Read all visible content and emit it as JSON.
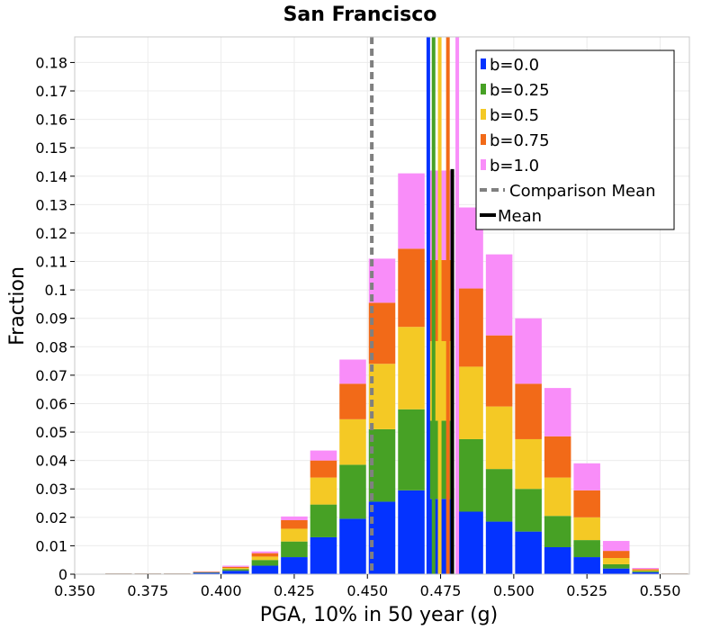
{
  "chart_data": {
    "type": "bar",
    "stacked": true,
    "title": "San Francisco",
    "xlabel": "PGA, 10% in 50 year (g)",
    "ylabel": "Fraction",
    "xlim": [
      0.35,
      0.56
    ],
    "ylim": [
      0,
      0.189
    ],
    "bin_width": 0.01,
    "x_ticks": [
      "0.350",
      "0.375",
      "0.400",
      "0.425",
      "0.450",
      "0.475",
      "0.500",
      "0.525",
      "0.550"
    ],
    "x_tick_values": [
      0.35,
      0.375,
      0.4,
      0.425,
      0.45,
      0.475,
      0.5,
      0.525,
      0.55
    ],
    "y_ticks": [
      "0",
      "0.01",
      "0.02",
      "0.03",
      "0.04",
      "0.05",
      "0.06",
      "0.07",
      "0.08",
      "0.09",
      "0.1",
      "0.11",
      "0.12",
      "0.13",
      "0.14",
      "0.15",
      "0.16",
      "0.17",
      "0.18"
    ],
    "y_tick_values": [
      0,
      0.01,
      0.02,
      0.03,
      0.04,
      0.05,
      0.06,
      0.07,
      0.08,
      0.09,
      0.1,
      0.11,
      0.12,
      0.13,
      0.14,
      0.15,
      0.16,
      0.17,
      0.18
    ],
    "bin_starts": [
      0.36,
      0.37,
      0.38,
      0.39,
      0.4,
      0.41,
      0.42,
      0.43,
      0.44,
      0.45,
      0.46,
      0.47,
      0.48,
      0.49,
      0.5,
      0.51,
      0.52,
      0.53,
      0.54,
      0.55
    ],
    "series": [
      {
        "name": "b=0.0",
        "color": "#0433ff",
        "values": [
          0.0,
          0.0,
          0.0,
          0.0005,
          0.0012,
          0.003,
          0.006,
          0.013,
          0.0195,
          0.0255,
          0.0295,
          0.0265,
          0.022,
          0.0185,
          0.015,
          0.0095,
          0.006,
          0.002,
          0.0007,
          0.0
        ]
      },
      {
        "name": "b=0.25",
        "color": "#47a125",
        "values": [
          0.0,
          0.0,
          0.0,
          0.0002,
          0.0006,
          0.002,
          0.0055,
          0.0115,
          0.019,
          0.0255,
          0.0285,
          0.0275,
          0.0255,
          0.0185,
          0.015,
          0.011,
          0.006,
          0.0015,
          0.0004,
          0.0
        ]
      },
      {
        "name": "b=0.5",
        "color": "#f4c925",
        "values": [
          0.0,
          0.0,
          0.0,
          0.0001,
          0.0004,
          0.0012,
          0.0045,
          0.0095,
          0.016,
          0.023,
          0.029,
          0.028,
          0.0255,
          0.022,
          0.0175,
          0.0135,
          0.008,
          0.0022,
          0.0003,
          0.0
        ]
      },
      {
        "name": "b=0.75",
        "color": "#f26a18",
        "values": [
          0.0,
          0.0,
          0.0,
          0.0001,
          0.0004,
          0.0012,
          0.003,
          0.006,
          0.0125,
          0.0215,
          0.0275,
          0.0285,
          0.0275,
          0.025,
          0.0195,
          0.0145,
          0.0095,
          0.0025,
          0.0004,
          0.0
        ]
      },
      {
        "name": "b=1.0",
        "color": "#f98df9",
        "values": [
          0.0,
          0.0,
          0.0,
          0.0001,
          0.0004,
          0.0006,
          0.0013,
          0.0035,
          0.0085,
          0.0155,
          0.0265,
          0.0315,
          0.0285,
          0.0285,
          0.023,
          0.017,
          0.0095,
          0.0035,
          0.0004,
          0.0
        ]
      }
    ],
    "vertical_lines": [
      {
        "name": "Comparison Mean",
        "x": 0.4515,
        "color": "#808080",
        "style": "dashed"
      },
      {
        "name": "b=0.0",
        "x": 0.4708,
        "color": "#0433ff",
        "style": "solid"
      },
      {
        "name": "b=0.25",
        "x": 0.4726,
        "color": "#47a125",
        "style": "solid"
      },
      {
        "name": "b=0.5",
        "x": 0.4747,
        "color": "#f4c925",
        "style": "solid"
      },
      {
        "name": "b=0.75",
        "x": 0.4775,
        "color": "#f26a18",
        "style": "solid"
      },
      {
        "name": "b=1.0",
        "x": 0.4807,
        "color": "#f98df9",
        "style": "solid"
      },
      {
        "name": "Mean",
        "x": 0.479,
        "color": "#000000",
        "style": "solid",
        "y_max": 0.1425
      }
    ],
    "legend": {
      "position": "top-right",
      "items": [
        {
          "label": "b=0.0",
          "color": "#0433ff",
          "marker": "square"
        },
        {
          "label": "b=0.25",
          "color": "#47a125",
          "marker": "square"
        },
        {
          "label": "b=0.5",
          "color": "#f4c925",
          "marker": "square"
        },
        {
          "label": "b=0.75",
          "color": "#f26a18",
          "marker": "square"
        },
        {
          "label": "b=1.0",
          "color": "#f98df9",
          "marker": "square"
        },
        {
          "label": "Comparison Mean",
          "color": "#808080",
          "marker": "dashed-line"
        },
        {
          "label": "Mean",
          "color": "#000000",
          "marker": "line"
        }
      ]
    }
  }
}
